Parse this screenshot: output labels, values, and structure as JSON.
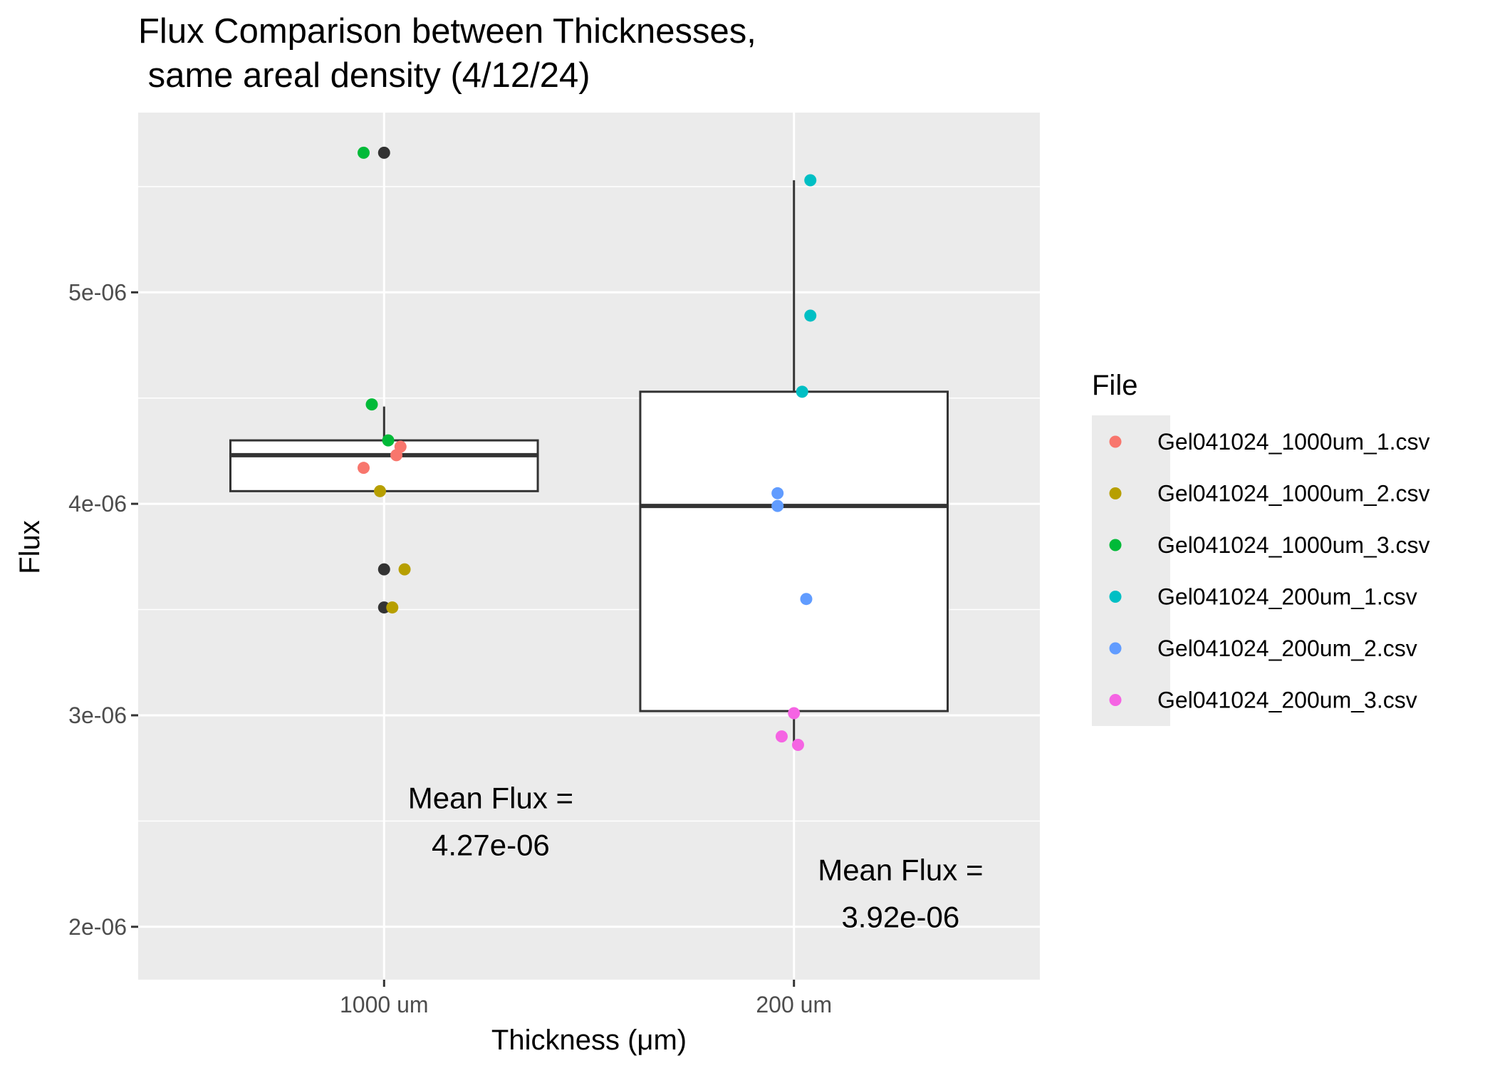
{
  "chart_data": {
    "type": "boxplot",
    "title_line1": "Flux Comparison between Thicknesses,",
    "title_line2": " same areal density (4/12/24)",
    "xlabel": "Thickness (μm)",
    "ylabel": "Flux",
    "categories": [
      "1000 um",
      "200 um"
    ],
    "ylim": [
      1.75e-06,
      5.85e-06
    ],
    "y_ticks": [
      2e-06,
      3e-06,
      4e-06,
      5e-06
    ],
    "y_tick_labels": [
      "2e-06",
      "3e-06",
      "4e-06",
      "5e-06"
    ],
    "grid": true,
    "panel_background": "#ebebeb",
    "legend": {
      "title": "File",
      "placement": "right",
      "entries": [
        {
          "label": "Gel041024_1000um_1.csv",
          "color": "#f8766d"
        },
        {
          "label": "Gel041024_1000um_2.csv",
          "color": "#b79f00"
        },
        {
          "label": "Gel041024_1000um_3.csv",
          "color": "#00ba38"
        },
        {
          "label": "Gel041024_200um_1.csv",
          "color": "#00bfc4"
        },
        {
          "label": "Gel041024_200um_2.csv",
          "color": "#619cff"
        },
        {
          "label": "Gel041024_200um_3.csv",
          "color": "#f564e3"
        }
      ]
    },
    "boxes": [
      {
        "category": "1000 um",
        "whisker_low": 4.06e-06,
        "q1": 4.06e-06,
        "median": 4.23e-06,
        "q3": 4.3e-06,
        "whisker_high": 4.46e-06,
        "outliers": [
          5.66e-06,
          3.69e-06,
          3.51e-06
        ]
      },
      {
        "category": "200 um",
        "whisker_low": 2.86e-06,
        "q1": 3.02e-06,
        "median": 3.99e-06,
        "q3": 4.53e-06,
        "whisker_high": 5.53e-06,
        "outliers": []
      }
    ],
    "points": [
      {
        "category": "1000 um",
        "jitter": -0.05,
        "y": 4.17e-06,
        "file": "Gel041024_1000um_1.csv"
      },
      {
        "category": "1000 um",
        "jitter": 0.03,
        "y": 4.23e-06,
        "file": "Gel041024_1000um_1.csv"
      },
      {
        "category": "1000 um",
        "jitter": 0.04,
        "y": 4.27e-06,
        "file": "Gel041024_1000um_1.csv"
      },
      {
        "category": "1000 um",
        "jitter": -0.01,
        "y": 4.06e-06,
        "file": "Gel041024_1000um_2.csv"
      },
      {
        "category": "1000 um",
        "jitter": 0.05,
        "y": 3.69e-06,
        "file": "Gel041024_1000um_2.csv"
      },
      {
        "category": "1000 um",
        "jitter": 0.02,
        "y": 3.51e-06,
        "file": "Gel041024_1000um_2.csv"
      },
      {
        "category": "1000 um",
        "jitter": -0.05,
        "y": 5.66e-06,
        "file": "Gel041024_1000um_3.csv"
      },
      {
        "category": "1000 um",
        "jitter": -0.03,
        "y": 4.47e-06,
        "file": "Gel041024_1000um_3.csv"
      },
      {
        "category": "1000 um",
        "jitter": 0.01,
        "y": 4.3e-06,
        "file": "Gel041024_1000um_3.csv"
      },
      {
        "category": "200 um",
        "jitter": 0.04,
        "y": 5.53e-06,
        "file": "Gel041024_200um_1.csv"
      },
      {
        "category": "200 um",
        "jitter": 0.04,
        "y": 4.89e-06,
        "file": "Gel041024_200um_1.csv"
      },
      {
        "category": "200 um",
        "jitter": 0.02,
        "y": 4.53e-06,
        "file": "Gel041024_200um_1.csv"
      },
      {
        "category": "200 um",
        "jitter": -0.04,
        "y": 4.05e-06,
        "file": "Gel041024_200um_2.csv"
      },
      {
        "category": "200 um",
        "jitter": -0.04,
        "y": 3.99e-06,
        "file": "Gel041024_200um_2.csv"
      },
      {
        "category": "200 um",
        "jitter": 0.03,
        "y": 3.55e-06,
        "file": "Gel041024_200um_2.csv"
      },
      {
        "category": "200 um",
        "jitter": 0.0,
        "y": 3.01e-06,
        "file": "Gel041024_200um_3.csv"
      },
      {
        "category": "200 um",
        "jitter": -0.03,
        "y": 2.9e-06,
        "file": "Gel041024_200um_3.csv"
      },
      {
        "category": "200 um",
        "jitter": 0.01,
        "y": 2.86e-06,
        "file": "Gel041024_200um_3.csv"
      }
    ],
    "annotations": [
      {
        "category": "1000 um",
        "x_offset": 0.26,
        "y": 2.5e-06,
        "line1": "Mean Flux =",
        "line2": "4.27e-06"
      },
      {
        "category": "200 um",
        "x_offset": 0.26,
        "y": 2.16e-06,
        "line1": "Mean Flux =",
        "line2": "3.92e-06"
      }
    ]
  }
}
